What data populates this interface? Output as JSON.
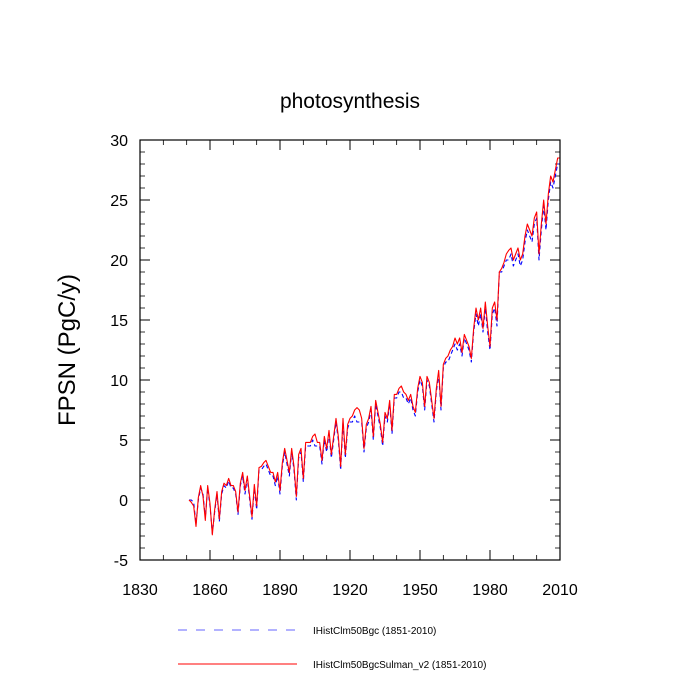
{
  "chart_data": {
    "type": "line",
    "title": "photosynthesis",
    "xlabel": "",
    "ylabel": "FPSN  (PgC/y)",
    "xlim": [
      1830,
      2010
    ],
    "ylim": [
      -5,
      30
    ],
    "x_ticks": [
      1830,
      1860,
      1890,
      1920,
      1950,
      1980,
      2010
    ],
    "y_ticks": [
      -5,
      0,
      5,
      10,
      15,
      20,
      25,
      30
    ],
    "grid": false,
    "legend_position": "bottom",
    "series": [
      {
        "name": "IHistClm50Bgc (1851-2010)",
        "color": "#0000ff",
        "line_style": "dashed",
        "x": [
          1851,
          1852,
          1853,
          1854,
          1855,
          1856,
          1857,
          1858,
          1859,
          1860,
          1861,
          1862,
          1863,
          1864,
          1865,
          1866,
          1867,
          1868,
          1869,
          1870,
          1871,
          1872,
          1873,
          1874,
          1875,
          1876,
          1877,
          1878,
          1879,
          1880,
          1881,
          1882,
          1883,
          1884,
          1885,
          1886,
          1887,
          1888,
          1889,
          1890,
          1891,
          1892,
          1893,
          1894,
          1895,
          1896,
          1897,
          1898,
          1899,
          1900,
          1901,
          1902,
          1903,
          1904,
          1905,
          1906,
          1907,
          1908,
          1909,
          1910,
          1911,
          1912,
          1913,
          1914,
          1915,
          1916,
          1917,
          1918,
          1919,
          1920,
          1921,
          1922,
          1923,
          1924,
          1925,
          1926,
          1927,
          1928,
          1929,
          1930,
          1931,
          1932,
          1933,
          1934,
          1935,
          1936,
          1937,
          1938,
          1939,
          1940,
          1941,
          1942,
          1943,
          1944,
          1945,
          1946,
          1947,
          1948,
          1949,
          1950,
          1951,
          1952,
          1953,
          1954,
          1955,
          1956,
          1957,
          1958,
          1959,
          1960,
          1961,
          1962,
          1963,
          1964,
          1965,
          1966,
          1967,
          1968,
          1969,
          1970,
          1971,
          1972,
          1973,
          1974,
          1975,
          1976,
          1977,
          1978,
          1979,
          1980,
          1981,
          1982,
          1983,
          1984,
          1985,
          1986,
          1987,
          1988,
          1989,
          1990,
          1991,
          1992,
          1993,
          1994,
          1995,
          1996,
          1997,
          1998,
          1999,
          2000,
          2001,
          2002,
          2003,
          2004,
          2005,
          2006,
          2007,
          2008,
          2009,
          2010
        ],
        "values": [
          0.0,
          0.0,
          -0.2,
          -2.0,
          0.0,
          1.0,
          0.5,
          -1.5,
          1.0,
          -0.5,
          -2.8,
          -1.0,
          0.5,
          -1.8,
          0.5,
          1.2,
          1.0,
          1.6,
          1.0,
          1.0,
          0.5,
          -1.2,
          1.2,
          2.0,
          0.5,
          1.8,
          0.0,
          -1.6,
          1.0,
          -0.8,
          2.5,
          2.5,
          2.8,
          3.0,
          2.5,
          2.0,
          2.0,
          1.2,
          2.0,
          0.5,
          2.8,
          4.0,
          3.0,
          2.0,
          4.0,
          2.5,
          0.0,
          3.5,
          4.0,
          1.5,
          4.5,
          4.5,
          4.5,
          5.0,
          4.5,
          4.5,
          4.5,
          3.0,
          5.0,
          4.0,
          5.5,
          3.5,
          5.0,
          6.5,
          5.0,
          2.5,
          6.5,
          3.5,
          6.0,
          6.5,
          6.5,
          7.0,
          6.5,
          6.5,
          6.5,
          4.0,
          6.0,
          6.5,
          7.5,
          5.0,
          8.0,
          7.0,
          6.0,
          4.5,
          7.0,
          6.5,
          8.0,
          5.5,
          8.5,
          8.5,
          9.0,
          9.0,
          8.5,
          8.5,
          8.0,
          8.5,
          7.5,
          7.0,
          9.0,
          10.0,
          9.5,
          7.5,
          10.0,
          9.5,
          8.0,
          6.5,
          9.0,
          10.5,
          7.5,
          11.0,
          11.5,
          11.5,
          12.0,
          12.5,
          13.0,
          12.5,
          13.0,
          12.0,
          13.5,
          13.0,
          12.5,
          11.5,
          14.0,
          15.5,
          14.5,
          15.5,
          14.0,
          16.0,
          14.0,
          12.5,
          15.5,
          16.0,
          14.5,
          19.0,
          19.0,
          19.5,
          20.0,
          20.0,
          20.5,
          19.5,
          20.0,
          20.5,
          19.5,
          20.0,
          21.5,
          22.5,
          22.0,
          21.5,
          23.0,
          23.5,
          20.0,
          22.5,
          24.5,
          22.5,
          25.0,
          26.5,
          26.0,
          27.0,
          28.0,
          28.0
        ]
      },
      {
        "name": "IHistClm50BgcSulman_v2 (1851-2010)",
        "color": "#ff0000",
        "line_style": "solid",
        "x": [
          1851,
          1852,
          1853,
          1854,
          1855,
          1856,
          1857,
          1858,
          1859,
          1860,
          1861,
          1862,
          1863,
          1864,
          1865,
          1866,
          1867,
          1868,
          1869,
          1870,
          1871,
          1872,
          1873,
          1874,
          1875,
          1876,
          1877,
          1878,
          1879,
          1880,
          1881,
          1882,
          1883,
          1884,
          1885,
          1886,
          1887,
          1888,
          1889,
          1890,
          1891,
          1892,
          1893,
          1894,
          1895,
          1896,
          1897,
          1898,
          1899,
          1900,
          1901,
          1902,
          1903,
          1904,
          1905,
          1906,
          1907,
          1908,
          1909,
          1910,
          1911,
          1912,
          1913,
          1914,
          1915,
          1916,
          1917,
          1918,
          1919,
          1920,
          1921,
          1922,
          1923,
          1924,
          1925,
          1926,
          1927,
          1928,
          1929,
          1930,
          1931,
          1932,
          1933,
          1934,
          1935,
          1936,
          1937,
          1938,
          1939,
          1940,
          1941,
          1942,
          1943,
          1944,
          1945,
          1946,
          1947,
          1948,
          1949,
          1950,
          1951,
          1952,
          1953,
          1954,
          1955,
          1956,
          1957,
          1958,
          1959,
          1960,
          1961,
          1962,
          1963,
          1964,
          1965,
          1966,
          1967,
          1968,
          1969,
          1970,
          1971,
          1972,
          1973,
          1974,
          1975,
          1976,
          1977,
          1978,
          1979,
          1980,
          1981,
          1982,
          1983,
          1984,
          1985,
          1986,
          1987,
          1988,
          1989,
          1990,
          1991,
          1992,
          1993,
          1994,
          1995,
          1996,
          1997,
          1998,
          1999,
          2000,
          2001,
          2002,
          2003,
          2004,
          2005,
          2006,
          2007,
          2008,
          2009,
          2010
        ],
        "values": [
          0.0,
          -0.2,
          -0.5,
          -2.2,
          0.2,
          1.2,
          0.3,
          -1.7,
          1.2,
          -0.3,
          -2.9,
          -0.8,
          0.7,
          -1.6,
          0.7,
          1.4,
          1.2,
          1.8,
          1.2,
          1.2,
          0.7,
          -1.0,
          1.4,
          2.3,
          0.8,
          2.0,
          0.3,
          -1.4,
          1.3,
          -0.5,
          2.7,
          2.8,
          3.1,
          3.3,
          2.8,
          2.3,
          2.3,
          1.5,
          2.3,
          0.8,
          3.1,
          4.3,
          3.3,
          2.3,
          4.3,
          2.8,
          0.3,
          3.8,
          4.3,
          1.8,
          4.8,
          4.8,
          4.8,
          5.3,
          5.5,
          4.8,
          4.8,
          3.3,
          5.3,
          4.3,
          5.8,
          3.8,
          5.3,
          6.8,
          5.3,
          2.8,
          6.8,
          3.8,
          6.3,
          6.8,
          7.0,
          7.5,
          7.7,
          7.5,
          6.8,
          4.3,
          6.3,
          6.8,
          7.8,
          5.3,
          8.3,
          7.3,
          6.3,
          4.8,
          7.3,
          6.8,
          8.3,
          5.8,
          8.8,
          8.8,
          9.3,
          9.5,
          9.0,
          8.8,
          8.3,
          8.8,
          7.8,
          7.3,
          9.3,
          10.3,
          9.8,
          7.8,
          10.3,
          9.8,
          8.3,
          6.8,
          9.3,
          10.8,
          7.8,
          11.3,
          11.8,
          12.0,
          12.5,
          12.8,
          13.5,
          13.0,
          13.5,
          12.3,
          13.8,
          13.3,
          12.8,
          11.8,
          14.3,
          16.0,
          15.0,
          16.0,
          14.3,
          16.5,
          14.5,
          12.8,
          16.0,
          16.5,
          15.0,
          19.0,
          19.3,
          19.8,
          20.5,
          20.8,
          21.0,
          20.0,
          20.5,
          21.0,
          20.0,
          20.5,
          22.0,
          23.0,
          22.5,
          22.0,
          23.5,
          24.0,
          20.5,
          23.0,
          25.0,
          23.0,
          25.5,
          27.0,
          26.5,
          27.5,
          28.5,
          28.5
        ]
      }
    ]
  },
  "legend": {
    "entries": [
      {
        "label": "IHistClm50Bgc (1851-2010)",
        "color": "#6666ff",
        "line_style": "dashed"
      },
      {
        "label": "IHistClm50BgcSulman_v2 (1851-2010)",
        "color": "#ff0000",
        "line_style": "solid"
      }
    ]
  }
}
